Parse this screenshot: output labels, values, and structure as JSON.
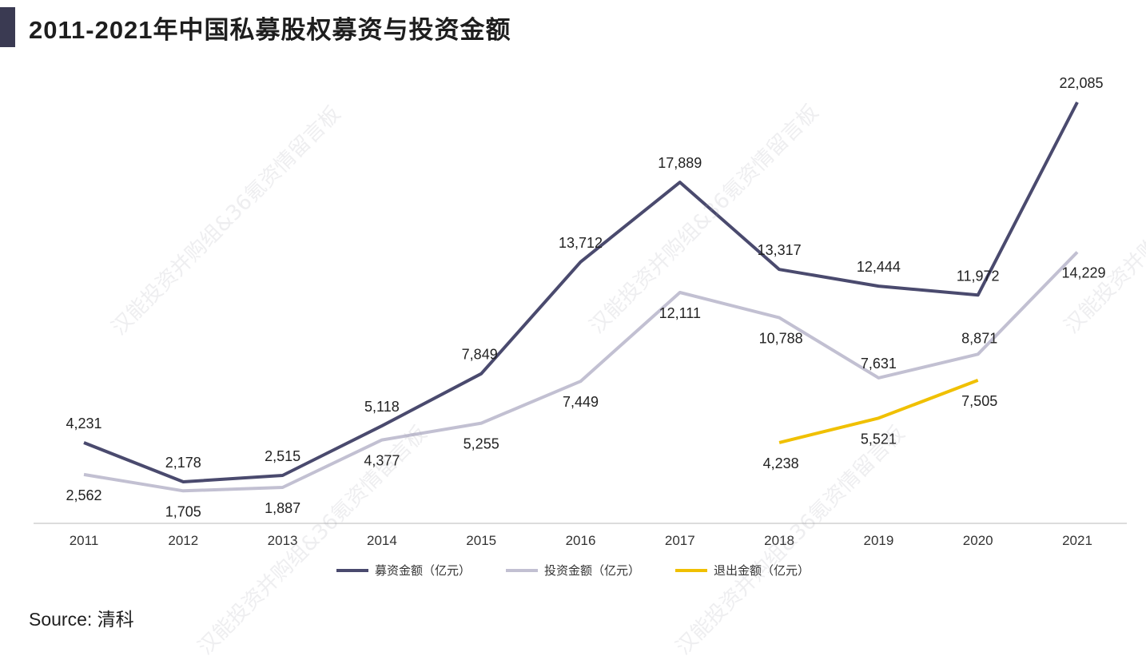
{
  "title": "2011-2021年中国私募股权募资与投资金额",
  "source": "Source: 清科",
  "watermark": "汉能投资并购组&36氪资情留言板",
  "chart_data": {
    "type": "line",
    "title": "2011-2021年中国私募股权募资与投资金额",
    "categories": [
      "2011",
      "2012",
      "2013",
      "2014",
      "2015",
      "2016",
      "2017",
      "2018",
      "2019",
      "2020",
      "2021"
    ],
    "ylim": [
      0,
      22085
    ],
    "grid": false,
    "legend_position": "bottom",
    "series": [
      {
        "name": "募资金额（亿元）",
        "color": "#4a4a6e",
        "values": [
          4231,
          2178,
          2515,
          5118,
          7849,
          13712,
          17889,
          13317,
          12444,
          11972,
          22085
        ],
        "labels": [
          "4,231",
          "2,178",
          "2,515",
          "5,118",
          "7,849",
          "13,712",
          "17,889",
          "13,317",
          "12,444",
          "11,972",
          "22,085"
        ]
      },
      {
        "name": "投资金额（亿元）",
        "color": "#c2c0d2",
        "values": [
          2562,
          1705,
          1887,
          4377,
          5255,
          7449,
          12111,
          10788,
          7631,
          8871,
          14229
        ],
        "labels": [
          "2,562",
          "1,705",
          "1,887",
          "4,377",
          "5,255",
          "7,449",
          "12,111",
          "10,788",
          "7,631",
          "8,871",
          "14,229"
        ]
      },
      {
        "name": "退出金额（亿元）",
        "color": "#f0c000",
        "values": [
          null,
          null,
          null,
          null,
          null,
          null,
          null,
          4238,
          5521,
          7505,
          null
        ],
        "labels": [
          null,
          null,
          null,
          null,
          null,
          null,
          null,
          "4,238",
          "5,521",
          "7,505",
          null
        ]
      }
    ]
  }
}
